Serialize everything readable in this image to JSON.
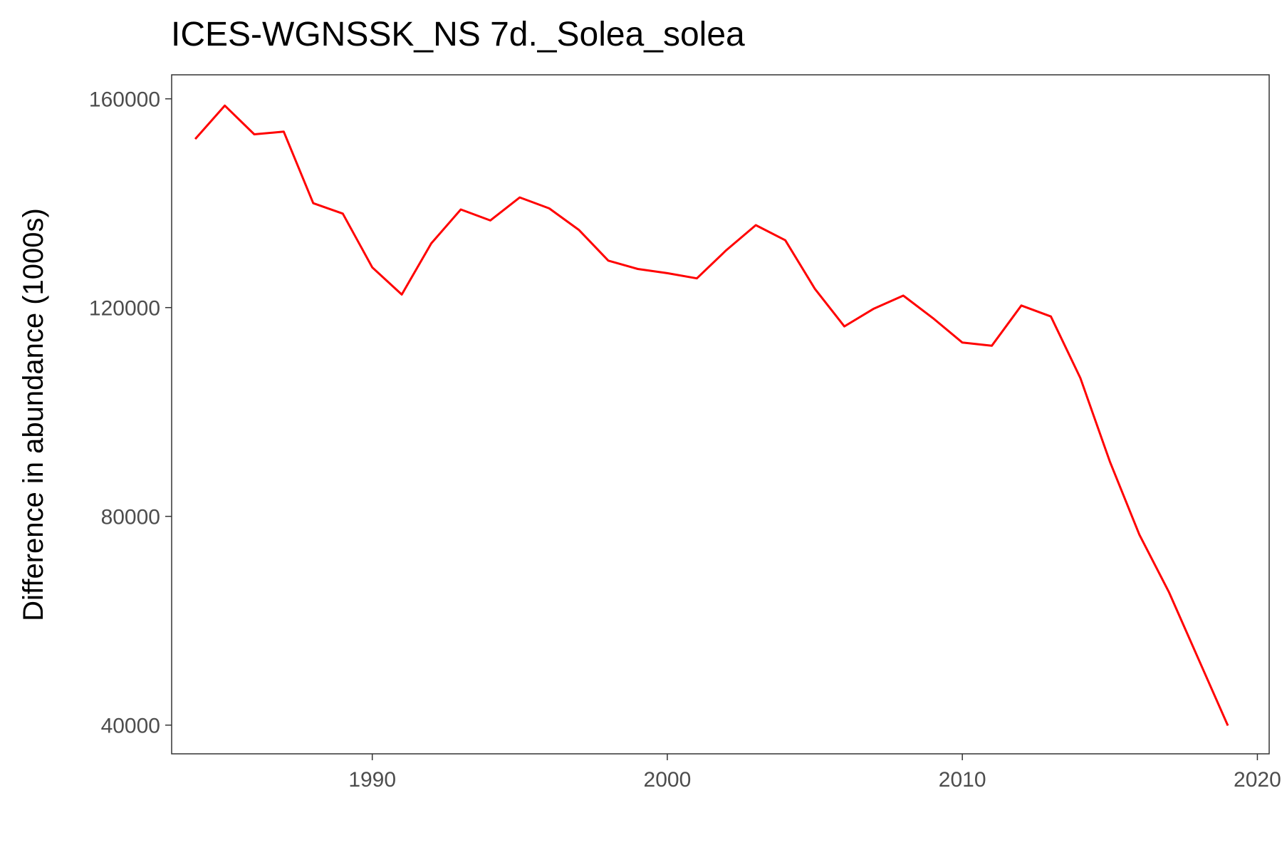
{
  "chart_data": {
    "type": "line",
    "title": "ICES-WGNSSK_NS 7d._Solea_solea",
    "xlabel": "",
    "ylabel": "Difference in abundance (1000s)",
    "xlim": [
      1983.2,
      2020.4
    ],
    "ylim": [
      34500,
      164600
    ],
    "x_ticks": [
      1990,
      2000,
      2010,
      2020
    ],
    "y_ticks": [
      40000,
      80000,
      120000,
      160000
    ],
    "x_tick_labels": [
      "1990",
      "2000",
      "2010",
      "2020"
    ],
    "y_tick_labels": [
      "40000",
      "80000",
      "120000",
      "160000"
    ],
    "grid": false,
    "line_color": "#ff0000",
    "series": [
      {
        "x": [
          1984,
          1985,
          1986,
          1987,
          1988,
          1989,
          1990,
          1991,
          1992,
          1993,
          1994,
          1995,
          1996,
          1997,
          1998,
          1999,
          2000,
          2001,
          2002,
          2003,
          2004,
          2005,
          2006,
          2007,
          2008,
          2009,
          2010,
          2011,
          2012,
          2013,
          2014,
          2015,
          2016,
          2017,
          2018,
          2019
        ],
        "values": [
          152300,
          158700,
          153200,
          153700,
          140000,
          138000,
          127700,
          122500,
          132300,
          138800,
          136700,
          141100,
          139000,
          134900,
          129000,
          127400,
          126600,
          125600,
          131000,
          135800,
          132900,
          123600,
          116400,
          119800,
          122300,
          118000,
          113300,
          112700,
          120400,
          118300,
          106500,
          90500,
          76500,
          65500,
          52700,
          39900
        ]
      }
    ]
  }
}
